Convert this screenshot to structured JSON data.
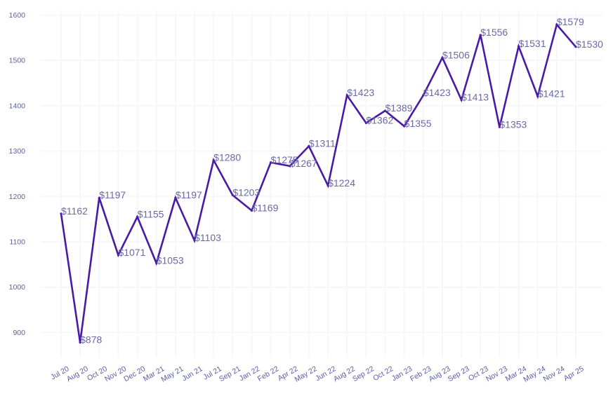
{
  "chart_data": {
    "type": "line",
    "title": "",
    "xlabel": "",
    "ylabel": "",
    "categories": [
      "Jul 20",
      "Aug 20",
      "Oct 20",
      "Nov 20",
      "Dec 20",
      "Mar 21",
      "May 21",
      "Jun 21",
      "Jul 21",
      "Sep 21",
      "Jan 22",
      "Feb 22",
      "Apr 22",
      "May 22",
      "Jun 22",
      "Aug 22",
      "Sep 22",
      "Oct 22",
      "Jan 23",
      "Feb 23",
      "Aug 23",
      "Sep 23",
      "Oct 23",
      "Nov 23",
      "Mar 24",
      "May 24",
      "Nov 24",
      "Apr 25"
    ],
    "series": [
      {
        "values": [
          1162,
          878,
          1197,
          1071,
          1155,
          1053,
          1197,
          1103,
          1280,
          1203,
          1169,
          1275,
          1267,
          1311,
          1224,
          1423,
          1362,
          1389,
          1355,
          1423,
          1506,
          1413,
          1556,
          1353,
          1531,
          1421,
          1579,
          1530
        ],
        "labels": [
          "$1162",
          "$878",
          "$1197",
          "$1071",
          "$1155",
          "$1053",
          "$1197",
          "$1103",
          "$1280",
          "$1203",
          "$1169",
          "$1275",
          "$1267",
          "$1311",
          "$1224",
          "$1423",
          "$1362",
          "$1389",
          "$1355",
          "$1423",
          "$1506",
          "$1413",
          "$1556",
          "$1353",
          "$1531",
          "$1421",
          "$1579",
          "$1530"
        ]
      }
    ],
    "yticks": [
      "900",
      "1000",
      "1100",
      "1200",
      "1300",
      "1400",
      "1500",
      "1600"
    ],
    "ylim": [
      845,
      1610
    ],
    "grid": true,
    "legend": "none",
    "colors": {
      "line": "#4a1aa6",
      "tick_text": "#5b5ea6",
      "data_label": "#6a6aa8",
      "grid": "#f7f7fb"
    }
  }
}
